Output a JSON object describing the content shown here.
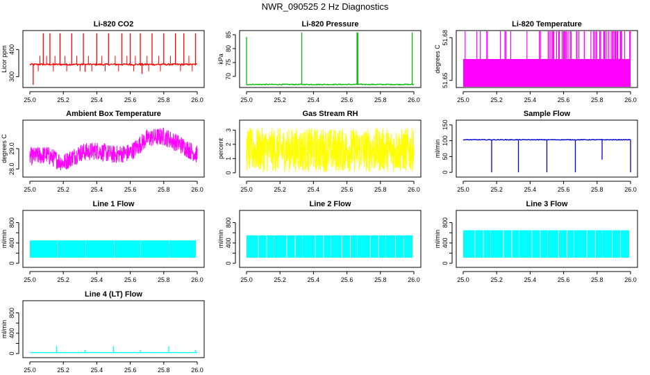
{
  "figure_title": "NWR_090525  2 Hz Diagnostics",
  "chart_data": [
    {
      "id": "co2",
      "type": "line",
      "title": "Li-820 CO2",
      "ylabel": "Licor ppm",
      "color": "#ff0000",
      "xlim": [
        25.0,
        26.0
      ],
      "ylim": [
        260,
        470
      ],
      "yticks": [
        300,
        400
      ],
      "xticks": [
        25.0,
        25.2,
        25.4,
        25.6,
        25.8,
        26.0
      ],
      "series": [
        {
          "name": "Li-820 CO2",
          "style": "noise",
          "baseline": 345,
          "noise": 3,
          "spikes": [
            [
              25.02,
              270
            ],
            [
              25.08,
              460
            ],
            [
              25.12,
              460
            ],
            [
              25.18,
              460
            ],
            [
              25.25,
              460
            ],
            [
              25.32,
              460
            ],
            [
              25.33,
              318
            ],
            [
              25.4,
              460
            ],
            [
              25.47,
              460
            ],
            [
              25.55,
              460
            ],
            [
              25.6,
              460
            ],
            [
              25.66,
              460
            ],
            [
              25.67,
              310
            ],
            [
              25.73,
              460
            ],
            [
              25.8,
              460
            ],
            [
              25.87,
              460
            ],
            [
              25.92,
              460
            ],
            [
              25.99,
              460
            ]
          ],
          "ticks_up": [
            25.06,
            25.1,
            25.15,
            25.21,
            25.28,
            25.35,
            25.43,
            25.51,
            25.58,
            25.63,
            25.7,
            25.77,
            25.84,
            25.95
          ],
          "ticks_down": [
            25.05,
            25.14,
            25.22,
            25.3,
            25.37,
            25.45,
            25.53,
            25.62,
            25.71,
            25.78,
            25.9,
            25.97
          ]
        }
      ]
    },
    {
      "id": "pressure",
      "type": "line",
      "title": "Li-820 Pressure",
      "ylabel": "kPa",
      "color": "#00bb00",
      "xlim": [
        25.0,
        26.0
      ],
      "ylim": [
        66,
        86.5
      ],
      "yticks": [
        70,
        75,
        80,
        85
      ],
      "xticks": [
        25.0,
        25.2,
        25.4,
        25.6,
        25.8,
        26.0
      ],
      "series": [
        {
          "name": "Li-820 Pressure",
          "style": "noise",
          "baseline": 67.1,
          "noise": 0.15,
          "spikes": [
            [
              25.0,
              84.2
            ],
            [
              25.33,
              85.8
            ],
            [
              25.66,
              85.8
            ],
            [
              25.665,
              85.8
            ],
            [
              25.99,
              85.8
            ]
          ],
          "ticks_up": [],
          "ticks_down": []
        }
      ]
    },
    {
      "id": "licor_temp",
      "type": "line",
      "title": "Li-820 Temperature",
      "ylabel": "degrees C",
      "color": "#ff00ff",
      "xlim": [
        25.0,
        26.0
      ],
      "ylim": [
        51.645,
        51.685
      ],
      "yticks": [
        51.65,
        51.68
      ],
      "yticklabels": [
        "51.65",
        "51.68"
      ],
      "xticks": [
        25.0,
        25.2,
        25.4,
        25.6,
        25.8,
        26.0
      ],
      "series": [
        {
          "name": "Li-820 Temperature",
          "style": "band",
          "low": 51.645,
          "high": 51.665,
          "top": 51.685,
          "spike_count_early": 10,
          "spike_count_late": 55
        }
      ]
    },
    {
      "id": "box_temp",
      "type": "line",
      "title": "Ambient Box Temperature",
      "ylabel": "degrees C",
      "color": "#ff00ff",
      "xlim": [
        25.0,
        26.0
      ],
      "ylim": [
        27.6,
        30.4
      ],
      "yticks": [
        28.0,
        29.0
      ],
      "yticklabels": [
        "28.0",
        "29.0"
      ],
      "xticks": [
        25.0,
        25.2,
        25.4,
        25.6,
        25.8,
        26.0
      ],
      "series": [
        {
          "name": "Ambient Box Temperature",
          "style": "trend",
          "trend_x": [
            25.0,
            25.1,
            25.2,
            25.3,
            25.4,
            25.5,
            25.6,
            25.7,
            25.8,
            25.9,
            26.0
          ],
          "trend_y": [
            28.6,
            28.7,
            28.3,
            28.8,
            28.9,
            28.7,
            28.8,
            29.5,
            29.6,
            29.2,
            28.7
          ],
          "amp": 0.45
        }
      ]
    },
    {
      "id": "rh",
      "type": "line",
      "title": "Gas Stream RH",
      "ylabel": "percent",
      "color": "#ffff00",
      "xlim": [
        25.0,
        26.0
      ],
      "ylim": [
        -0.3,
        3.7
      ],
      "yticks": [
        0,
        1,
        2,
        3
      ],
      "xticks": [
        25.0,
        25.2,
        25.4,
        25.6,
        25.8,
        26.0
      ],
      "series": [
        {
          "name": "Gas Stream RH",
          "style": "noisefill",
          "center": 1.6,
          "amp": 1.55
        }
      ]
    },
    {
      "id": "sample_flow",
      "type": "line",
      "title": "Sample Flow",
      "ylabel": "ml/min",
      "color": "#0000cc",
      "xlim": [
        25.0,
        26.0
      ],
      "ylim": [
        -15,
        165
      ],
      "yticks": [
        0,
        50,
        100,
        150
      ],
      "xticks": [
        25.0,
        25.2,
        25.4,
        25.6,
        25.8,
        26.0
      ],
      "series": [
        {
          "name": "Sample Flow",
          "style": "noise",
          "baseline": 103,
          "noise": 1,
          "spikes": [
            [
              25.17,
              0
            ],
            [
              25.33,
              0
            ],
            [
              25.5,
              0
            ],
            [
              25.67,
              0
            ],
            [
              25.83,
              40
            ],
            [
              26.0,
              0
            ]
          ],
          "ticks_up": [],
          "ticks_down": []
        }
      ]
    },
    {
      "id": "line1",
      "type": "line",
      "title": "Line 1 Flow",
      "ylabel": "ml/min",
      "color": "#00ffff",
      "xlim": [
        25.0,
        26.0
      ],
      "ylim": [
        -80,
        1040
      ],
      "yticks": [
        0,
        400,
        800
      ],
      "ytickminor": [
        200,
        600
      ],
      "xticks": [
        25.0,
        25.2,
        25.4,
        25.6,
        25.8,
        26.0
      ],
      "series": [
        {
          "name": "Line 1 Flow",
          "style": "pulses",
          "low": 110,
          "high": 450,
          "gaps": [
            25.16,
            25.33,
            25.5,
            25.66,
            25.83,
            25.99
          ],
          "lines": []
        }
      ]
    },
    {
      "id": "line2",
      "type": "line",
      "title": "Line 2 Flow",
      "ylabel": "ml/min",
      "color": "#00ffff",
      "xlim": [
        25.0,
        26.0
      ],
      "ylim": [
        -80,
        1040
      ],
      "yticks": [
        0,
        400,
        800
      ],
      "ytickminor": [
        200,
        600
      ],
      "xticks": [
        25.0,
        25.2,
        25.4,
        25.6,
        25.8,
        26.0
      ],
      "series": [
        {
          "name": "Line 2 Flow",
          "style": "pulses",
          "low": 110,
          "high": 550,
          "gaps": [
            25.16,
            25.33,
            25.5,
            25.66,
            25.83,
            25.99
          ],
          "lines": [
            25.07,
            25.12,
            25.24,
            25.29,
            25.41,
            25.46,
            25.57,
            25.62,
            25.74,
            25.79,
            25.89,
            25.94
          ]
        }
      ]
    },
    {
      "id": "line3",
      "type": "line",
      "title": "Line 3 Flow",
      "ylabel": "ml/min",
      "color": "#00ffff",
      "xlim": [
        25.0,
        26.0
      ],
      "ylim": [
        -80,
        1040
      ],
      "yticks": [
        0,
        400,
        800
      ],
      "ytickminor": [
        200,
        600
      ],
      "xticks": [
        25.0,
        25.2,
        25.4,
        25.6,
        25.8,
        26.0
      ],
      "series": [
        {
          "name": "Line 3 Flow",
          "style": "pulses",
          "low": 110,
          "high": 650,
          "gaps": [
            25.16,
            25.33,
            25.5,
            25.66,
            25.83,
            25.99
          ],
          "lines": [
            25.07,
            25.12,
            25.24,
            25.29,
            25.41,
            25.46,
            25.57,
            25.62,
            25.74,
            25.79,
            25.89,
            25.94
          ]
        }
      ]
    },
    {
      "id": "line4",
      "type": "line",
      "title": "Line 4 (LT) Flow",
      "ylabel": "ml/min",
      "color": "#00ffff",
      "xlim": [
        25.0,
        26.0
      ],
      "ylim": [
        -80,
        1040
      ],
      "yticks": [
        0,
        400,
        800
      ],
      "ytickminor": [
        200,
        600
      ],
      "xticks": [
        25.0,
        25.2,
        25.4,
        25.6,
        25.8,
        26.0
      ],
      "series": [
        {
          "name": "Line 4 (LT) Flow",
          "style": "noise",
          "baseline": 20,
          "noise": 2,
          "spikes": [
            [
              25.16,
              150
            ],
            [
              25.33,
              70
            ],
            [
              25.5,
              145
            ],
            [
              25.66,
              70
            ],
            [
              25.83,
              140
            ],
            [
              25.99,
              70
            ]
          ],
          "ticks_up": [],
          "ticks_down": []
        }
      ]
    }
  ]
}
